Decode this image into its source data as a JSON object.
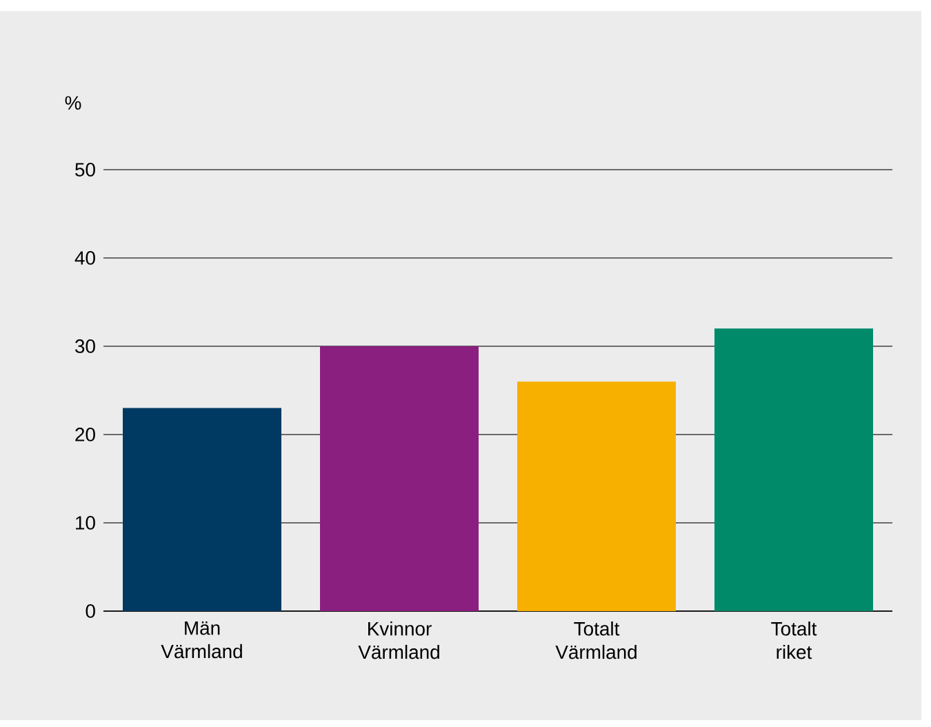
{
  "chart_data": {
    "type": "bar",
    "ylabel": "%",
    "categories": [
      "Män Värmland",
      "Kvinnor Värmland",
      "Totalt Värmland",
      "Totalt riket"
    ],
    "values": [
      23,
      30,
      26,
      32
    ],
    "colors": [
      "#003a63",
      "#8b1f7f",
      "#f8b000",
      "#008a6a"
    ],
    "ylim": [
      0,
      50
    ],
    "yticks": [
      0,
      10,
      20,
      30,
      40,
      50
    ],
    "grid": "y"
  }
}
